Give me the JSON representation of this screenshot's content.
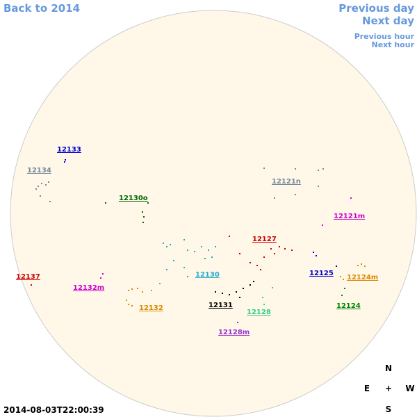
{
  "navigation": {
    "back": "Back to 2014",
    "previous_day": "Previous day",
    "next_day": "Next day",
    "previous_hour": "Previous hour",
    "next_hour": "Next hour"
  },
  "regions": [
    {
      "label": "12133",
      "color": "#0000cc"
    },
    {
      "label": "12134",
      "color": "#778899"
    },
    {
      "label": "12121n",
      "color": "#778899"
    },
    {
      "label": "12130o",
      "color": "#006600"
    },
    {
      "label": "12121m",
      "color": "#cc00cc"
    },
    {
      "label": "12127",
      "color": "#cc0000"
    },
    {
      "label": "12137",
      "color": "#cc0000"
    },
    {
      "label": "12125",
      "color": "#0000cc"
    },
    {
      "label": "12124m",
      "color": "#dd8800"
    },
    {
      "label": "12130",
      "color": "#22aacc"
    },
    {
      "label": "12132m",
      "color": "#cc00cc"
    },
    {
      "label": "12132",
      "color": "#dd8800"
    },
    {
      "label": "12131",
      "color": "#000000"
    },
    {
      "label": "12124",
      "color": "#008800"
    },
    {
      "label": "12128",
      "color": "#33cc88"
    },
    {
      "label": "12128m",
      "color": "#9933cc"
    }
  ],
  "compass": {
    "north": "N",
    "east": "E",
    "center": "+",
    "west": "W",
    "south": "S"
  },
  "timestamp": "2014-08-03T22:00:39"
}
